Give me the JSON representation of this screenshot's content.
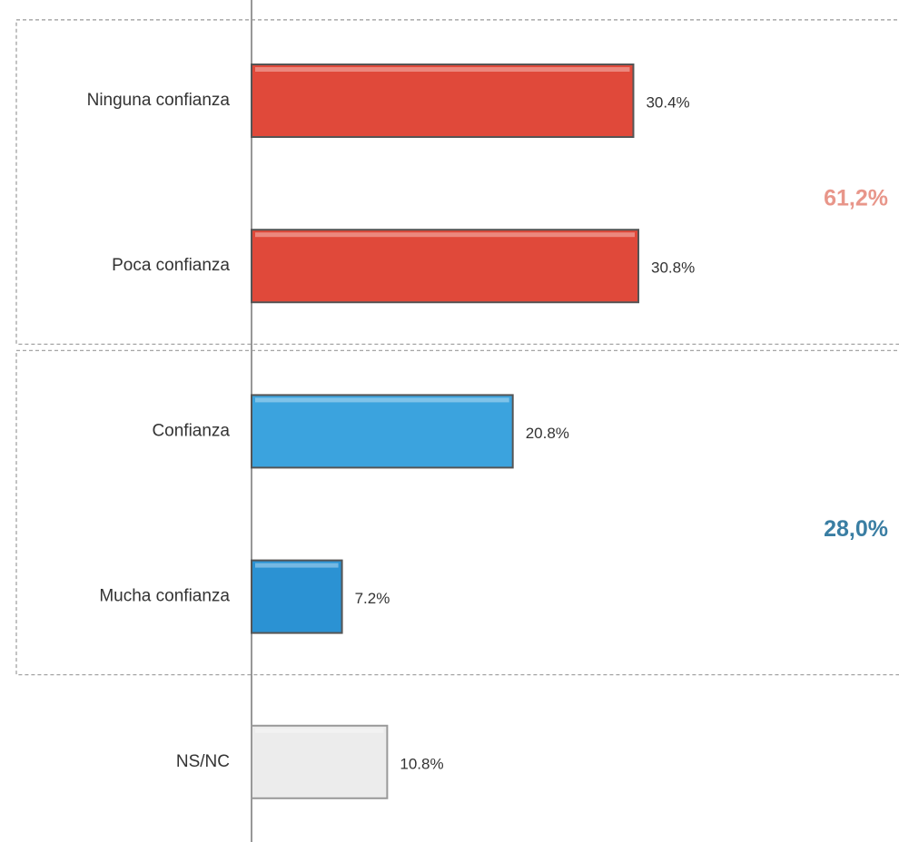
{
  "chart_data": {
    "type": "hbar",
    "categories": [
      "Ninguna confianza",
      "Poca confianza",
      "Confianza",
      "Mucha confianza",
      "NS/NC"
    ],
    "values": [
      30.4,
      30.8,
      20.8,
      7.2,
      10.8
    ],
    "value_labels": [
      "30.4%",
      "30.8%",
      "20.8%",
      "7.2%",
      "10.8%"
    ],
    "colors": [
      "#e0493a",
      "#e0493a",
      "#3ba3de",
      "#2b92d3",
      "#ececec"
    ],
    "annotations": [
      {
        "text": "61,2%",
        "color": "#e8968a"
      },
      {
        "text": "28,0%",
        "color": "#3a7ea3"
      }
    ]
  }
}
